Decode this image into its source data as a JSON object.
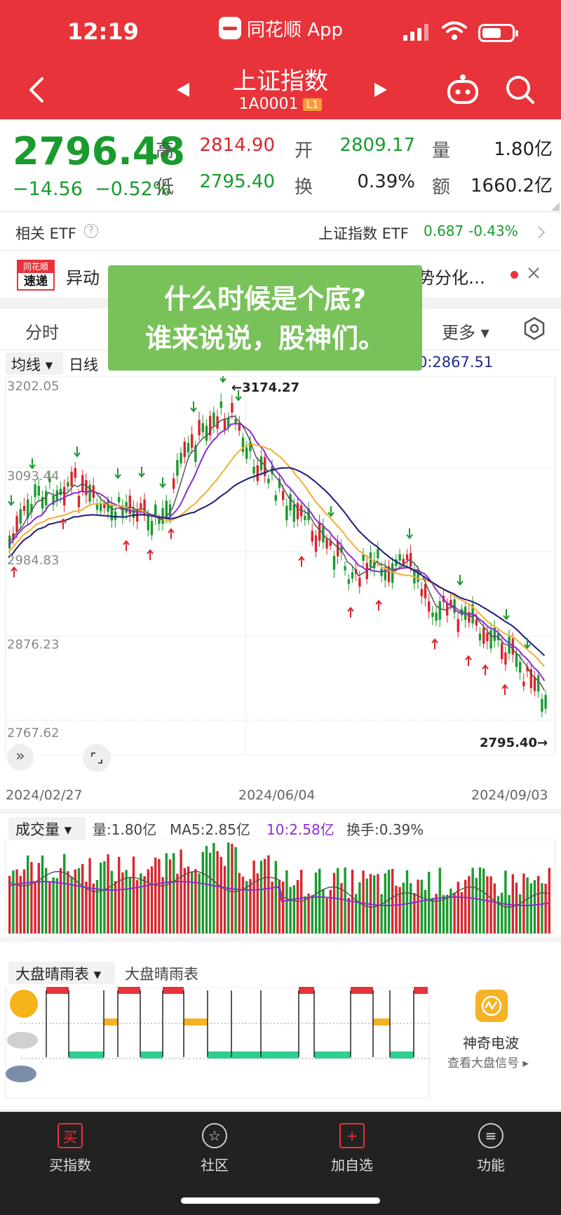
{
  "status": {
    "time": "12:19",
    "app_name": "同花顺 App"
  },
  "header": {
    "title": "上证指数",
    "code": "1A0001",
    "level_badge": "L1"
  },
  "quote": {
    "price": "2796.48",
    "change": "−14.56",
    "change_pct": "−0.52%",
    "high_label": "高",
    "high": "2814.90",
    "low_label": "低",
    "low": "2795.40",
    "open_label": "开",
    "open": "2809.17",
    "turnover_label": "换",
    "turnover": "0.39%",
    "volume_label": "量",
    "volume": "1.80亿",
    "amount_label": "额",
    "amount": "1660.2亿"
  },
  "etf": {
    "label": "相关 ETF",
    "name": "上证指数 ETF",
    "price": "0.687",
    "pct": "-0.43%"
  },
  "news": {
    "logo_top": "同花顺",
    "logo_bottom": "速递",
    "text": "异动",
    "text_end": "势分化…"
  },
  "tabs": {
    "first": "分时",
    "more": "更多"
  },
  "overlay": {
    "line1": "什么时候是个底?",
    "line2": "谁来说说，股神们。"
  },
  "kline": {
    "ma_selector": "均线",
    "period": "日线",
    "ma_value": "0:2867.51",
    "y_labels": [
      "3202.05",
      "3093.44",
      "2984.83",
      "2876.23",
      "2767.62"
    ],
    "high_marker": "←3174.27",
    "low_marker": "2795.40→",
    "dates": [
      "2024/02/27",
      "2024/06/04",
      "2024/09/03"
    ]
  },
  "volume": {
    "selector": "成交量",
    "vol": "量:1.80亿",
    "ma5": "MA5:2.85亿",
    "ma10": "10:2.58亿",
    "turnover": "换手:0.39%"
  },
  "weather": {
    "selector": "大盘晴雨表",
    "title": "大盘晴雨表",
    "card_title": "神奇电波",
    "card_link": "查看大盘信号"
  },
  "bottom_nav": {
    "items": [
      "买指数",
      "社区",
      "加自选",
      "功能"
    ]
  },
  "colors": {
    "brand": "#e8333a",
    "up": "#d8262e",
    "down": "#1a9b2e"
  }
}
